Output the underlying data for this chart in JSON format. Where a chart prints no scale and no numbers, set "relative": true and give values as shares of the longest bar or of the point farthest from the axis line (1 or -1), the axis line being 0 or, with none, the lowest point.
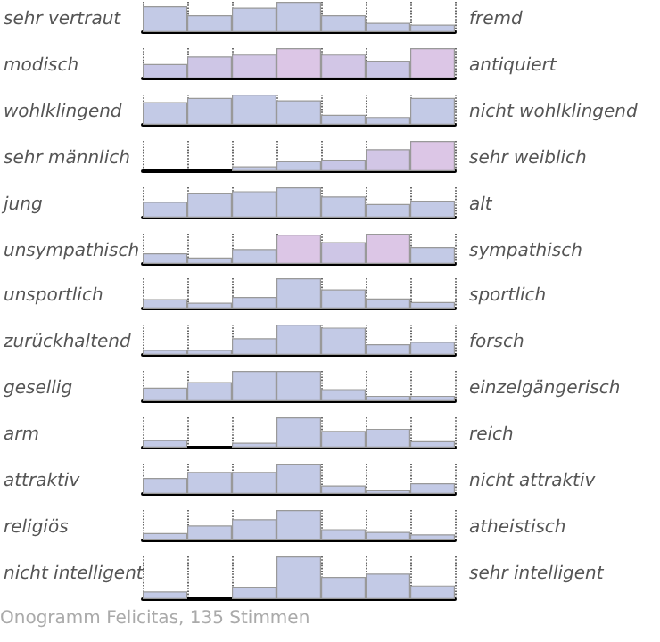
{
  "chart_data": [
    {
      "type": "bar",
      "relative": true,
      "ylabel": "sehr vertraut",
      "y2label": "fremd",
      "grid": "x",
      "categories": [
        null,
        null,
        null,
        null,
        null,
        null,
        null
      ],
      "values": [
        0.85,
        0.56,
        0.81,
        1,
        0.56,
        0.31,
        0.25
      ],
      "colors": [
        "#c3cae6",
        "#c3cae6",
        "#c3cae6",
        "#c3cae6",
        "#c3cae6",
        "#c3cae6",
        "#c3cae6"
      ]
    },
    {
      "type": "bar",
      "relative": true,
      "ylabel": "modisch",
      "y2label": "antiquiert",
      "grid": "x",
      "categories": [
        null,
        null,
        null,
        null,
        null,
        null,
        null
      ],
      "values": [
        0.48,
        0.73,
        0.79,
        1,
        0.79,
        0.59,
        1
      ],
      "colors": [
        "#c7c6e6",
        "#cec6e6",
        "#d2c6e6",
        "#dcc6e6",
        "#d2c6e6",
        "#c9c6e6",
        "#dcc6e6"
      ]
    },
    {
      "type": "bar",
      "relative": true,
      "ylabel": "wohlklingend",
      "y2label": "nicht wohlklingend",
      "grid": "x",
      "categories": [
        null,
        null,
        null,
        null,
        null,
        null,
        null
      ],
      "values": [
        0.75,
        0.89,
        1,
        0.81,
        0.33,
        0.26,
        0.89
      ],
      "colors": [
        "#c3cae6",
        "#c3cae6",
        "#c3cae6",
        "#c3cae6",
        "#c3cae6",
        "#c3cae6",
        "#c3cae6"
      ]
    },
    {
      "type": "bar",
      "relative": true,
      "ylabel": "sehr männlich",
      "y2label": "sehr weiblich",
      "grid": "x",
      "categories": [
        null,
        null,
        null,
        null,
        null,
        null,
        null
      ],
      "values": [
        0,
        0,
        0.16,
        0.33,
        0.38,
        0.73,
        1
      ],
      "colors": [
        "#c3cae6",
        "#c3cae6",
        "#c3cae6",
        "#c3cae6",
        "#c7c6e6",
        "#d2c6e6",
        "#dcc6e6"
      ]
    },
    {
      "type": "bar",
      "relative": true,
      "ylabel": "jung",
      "y2label": "alt",
      "grid": "x",
      "categories": [
        null,
        null,
        null,
        null,
        null,
        null,
        null
      ],
      "values": [
        0.52,
        0.8,
        0.87,
        1,
        0.7,
        0.45,
        0.56
      ],
      "colors": [
        "#c3cae6",
        "#c3cae6",
        "#c3cae6",
        "#c3cae6",
        "#c3cae6",
        "#c3cae6",
        "#c3cae6"
      ]
    },
    {
      "type": "bar",
      "relative": true,
      "ylabel": "unsympathisch",
      "y2label": "sympathisch",
      "grid": "x",
      "categories": [
        null,
        null,
        null,
        null,
        null,
        null,
        null
      ],
      "values": [
        0.35,
        0.21,
        0.49,
        0.97,
        0.72,
        1,
        0.56
      ],
      "colors": [
        "#c3cae6",
        "#c3cae6",
        "#c3cae6",
        "#dcc6e6",
        "#cec6e6",
        "#dcc6e6",
        "#c3cae6"
      ]
    },
    {
      "type": "bar",
      "relative": true,
      "ylabel": "unsportlich",
      "y2label": "sportlich",
      "grid": "x",
      "categories": [
        null,
        null,
        null,
        null,
        null,
        null,
        null
      ],
      "values": [
        0.31,
        0.19,
        0.38,
        1,
        0.63,
        0.33,
        0.21
      ],
      "colors": [
        "#c3cae6",
        "#c3cae6",
        "#c3cae6",
        "#c3cae6",
        "#c3cae6",
        "#c3cae6",
        "#c3cae6"
      ]
    },
    {
      "type": "bar",
      "relative": true,
      "ylabel": "zurückhaltend",
      "y2label": "forsch",
      "grid": "x",
      "categories": [
        null,
        null,
        null,
        null,
        null,
        null,
        null
      ],
      "values": [
        0.17,
        0.17,
        0.55,
        1,
        0.9,
        0.35,
        0.43
      ],
      "colors": [
        "#c3cae6",
        "#c3cae6",
        "#c3cae6",
        "#c3cae6",
        "#c3cae6",
        "#c3cae6",
        "#c3cae6"
      ]
    },
    {
      "type": "bar",
      "relative": true,
      "ylabel": "gesellig",
      "y2label": "einzelgängerisch",
      "grid": "x",
      "categories": [
        null,
        null,
        null,
        null,
        null,
        null,
        null
      ],
      "values": [
        0.45,
        0.63,
        1,
        1,
        0.4,
        0.18,
        0.18
      ],
      "colors": [
        "#c3cae6",
        "#c3cae6",
        "#c3cae6",
        "#c3cae6",
        "#c3cae6",
        "#c3cae6",
        "#c3cae6"
      ]
    },
    {
      "type": "bar",
      "relative": true,
      "ylabel": "arm",
      "y2label": "reich",
      "grid": "x",
      "categories": [
        null,
        null,
        null,
        null,
        null,
        null,
        null
      ],
      "values": [
        0.25,
        0,
        0.16,
        1,
        0.55,
        0.62,
        0.21
      ],
      "colors": [
        "#c3cae6",
        "#c3cae6",
        "#c3cae6",
        "#c3cae6",
        "#c3cae6",
        "#c3cae6",
        "#c3cae6"
      ]
    },
    {
      "type": "bar",
      "relative": true,
      "ylabel": "attraktiv",
      "y2label": "nicht attraktiv",
      "grid": "x",
      "categories": [
        null,
        null,
        null,
        null,
        null,
        null,
        null
      ],
      "values": [
        0.53,
        0.73,
        0.73,
        1,
        0.28,
        0.12,
        0.35
      ],
      "colors": [
        "#c3cae6",
        "#c3cae6",
        "#c3cae6",
        "#c3cae6",
        "#c3cae6",
        "#c3cae6",
        "#c3cae6"
      ]
    },
    {
      "type": "bar",
      "relative": true,
      "ylabel": "religiös",
      "y2label": "atheistisch",
      "grid": "x",
      "categories": [
        null,
        null,
        null,
        null,
        null,
        null,
        null
      ],
      "values": [
        0.24,
        0.49,
        0.7,
        1,
        0.37,
        0.28,
        0.2
      ],
      "colors": [
        "#c3cae6",
        "#c3cae6",
        "#c3cae6",
        "#c3cae6",
        "#c3cae6",
        "#c3cae6",
        "#c3cae6"
      ]
    },
    {
      "type": "bar",
      "relative": true,
      "ylabel": "nicht intelligent",
      "y2label": "sehr intelligent",
      "grid": "x",
      "categories": [
        null,
        null,
        null,
        null,
        null,
        null,
        null
      ],
      "values": [
        0.18,
        0,
        0.29,
        1,
        0.52,
        0.6,
        0.32
      ],
      "colors": [
        "#c3cae6",
        "#c3cae6",
        "#c3cae6",
        "#c3cae6",
        "#c3cae6",
        "#c3cae6",
        "#c3cae6"
      ],
      "annotations": [
        "Onogramm Felicitas, 135 Stimmen"
      ]
    }
  ]
}
